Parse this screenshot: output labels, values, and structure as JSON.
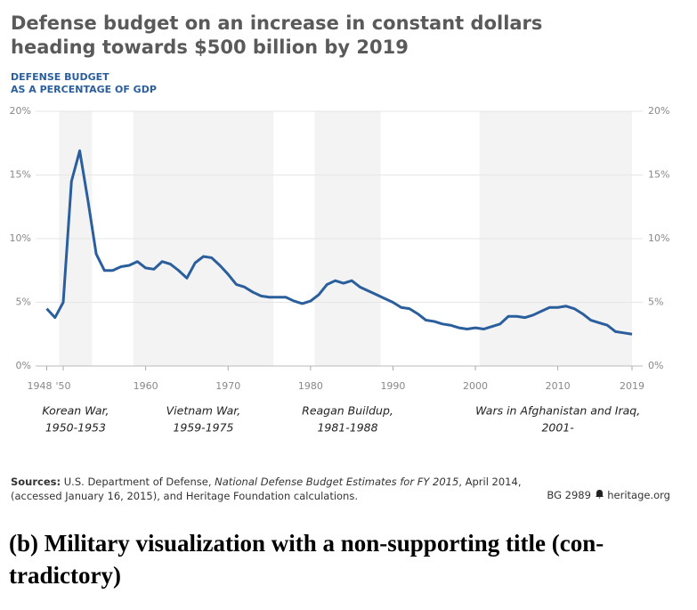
{
  "chart_data": {
    "type": "line",
    "title": [
      "Defense budget on an increase in constant dollars",
      "heading towards $500 billion by 2019"
    ],
    "subtitle": [
      "DEFENSE BUDGET",
      "AS A PERCENTAGE OF GDP"
    ],
    "x": [
      1948,
      1949,
      1950,
      1951,
      1952,
      1953,
      1954,
      1955,
      1956,
      1957,
      1958,
      1959,
      1960,
      1961,
      1962,
      1963,
      1964,
      1965,
      1966,
      1967,
      1968,
      1969,
      1970,
      1971,
      1972,
      1973,
      1974,
      1975,
      1976,
      1977,
      1978,
      1979,
      1980,
      1981,
      1982,
      1983,
      1984,
      1985,
      1986,
      1987,
      1988,
      1989,
      1990,
      1991,
      1992,
      1993,
      1994,
      1995,
      1996,
      1997,
      1998,
      1999,
      2000,
      2001,
      2002,
      2003,
      2004,
      2005,
      2006,
      2007,
      2008,
      2009,
      2010,
      2011,
      2012,
      2013,
      2014,
      2015,
      2016,
      2017,
      2018,
      2019
    ],
    "series": [
      {
        "name": "Defense budget as a percentage of GDP",
        "color": "#2a5e9c",
        "values": [
          4.5,
          3.8,
          5.0,
          14.5,
          16.9,
          13.0,
          8.8,
          7.5,
          7.5,
          7.8,
          7.9,
          8.2,
          7.7,
          7.6,
          8.2,
          8.0,
          7.5,
          6.9,
          8.1,
          8.6,
          8.5,
          7.9,
          7.2,
          6.4,
          6.2,
          5.8,
          5.5,
          5.4,
          5.4,
          5.4,
          5.1,
          4.9,
          5.1,
          5.6,
          6.4,
          6.7,
          6.5,
          6.7,
          6.2,
          5.9,
          5.6,
          5.3,
          5.0,
          4.6,
          4.5,
          4.1,
          3.6,
          3.5,
          3.3,
          3.2,
          3.0,
          2.9,
          3.0,
          2.9,
          3.1,
          3.3,
          3.9,
          3.9,
          3.8,
          4.0,
          4.3,
          4.6,
          4.6,
          4.7,
          4.5,
          4.1,
          3.6,
          3.4,
          3.2,
          2.7,
          2.6,
          2.5
        ]
      }
    ],
    "xlim": [
      1948,
      2019
    ],
    "xticks": [
      {
        "value": 1948,
        "label": "1948"
      },
      {
        "value": 1950,
        "label": "'50"
      },
      1960,
      1970,
      1980,
      1990,
      2000,
      2010,
      2019
    ],
    "ylim": [
      0,
      20
    ],
    "yticks": [
      {
        "value": 0,
        "label": "0%"
      },
      {
        "value": 5,
        "label": "5%"
      },
      {
        "value": 10,
        "label": "10%"
      },
      {
        "value": 15,
        "label": "15%"
      },
      {
        "value": 20,
        "label": "20%"
      }
    ],
    "grid": true,
    "periods": [
      {
        "label": "Korean War,",
        "years": "1950-1953",
        "start": 1950,
        "end": 1953
      },
      {
        "label": "Vietnam War,",
        "years": "1959-1975",
        "start": 1959,
        "end": 1975
      },
      {
        "label": "Reagan Buildup,",
        "years": "1981-1988",
        "start": 1981,
        "end": 1988
      },
      {
        "label": "Wars in Afghanistan and Iraq,",
        "years": "2001-",
        "start": 2001,
        "end": null
      }
    ],
    "period_color": "#f3f3f3"
  },
  "footer": {
    "source_label": "Sources:",
    "source_text1": "U.S. Department of Defense,",
    "source_italic": "National Defense Budget Estimates for FY 2015",
    "source_text2": ", April 2014,",
    "source_text3": "(accessed January 16, 2015), and Heritage Foundation calculations.",
    "code": "BG 2989",
    "site": "heritage.org"
  },
  "caption": [
    "(b) Military visualization with a non-supporting title (con-",
    "tradictory)"
  ]
}
